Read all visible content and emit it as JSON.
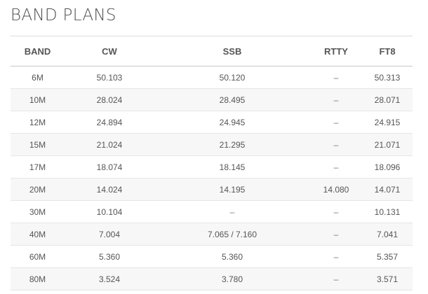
{
  "page": {
    "title": "BAND PLANS"
  },
  "table": {
    "headers": [
      "BAND",
      "CW",
      "SSB",
      "RTTY",
      "FT8"
    ],
    "rows": [
      [
        "6M",
        "50.103",
        "50.120",
        "–",
        "50.313"
      ],
      [
        "10M",
        "28.024",
        "28.495",
        "–",
        "28.071"
      ],
      [
        "12M",
        "24.894",
        "24.945",
        "–",
        "24.915"
      ],
      [
        "15M",
        "21.024",
        "21.295",
        "–",
        "21.071"
      ],
      [
        "17M",
        "18.074",
        "18.145",
        "–",
        "18.096"
      ],
      [
        "20M",
        "14.024",
        "14.195",
        "14.080",
        "14.071"
      ],
      [
        "30M",
        "10.104",
        "–",
        "–",
        "10.131"
      ],
      [
        "40M",
        "7.004",
        "7.065 / 7.160",
        "–",
        "7.041"
      ],
      [
        "60M",
        "5.360",
        "5.360",
        "–",
        "5.357"
      ],
      [
        "80M",
        "3.524",
        "3.780",
        "–",
        "3.571"
      ]
    ]
  }
}
